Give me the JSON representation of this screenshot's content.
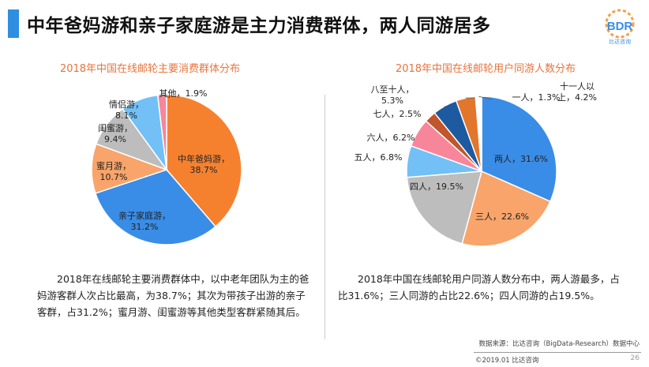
{
  "header": {
    "title": "中年爸妈游和亲子家庭游是主力消费群体，两人同游居多"
  },
  "logo": {
    "text": "BDR",
    "subtext": "比达咨询"
  },
  "chart_data": [
    {
      "type": "pie",
      "title": "2018年中国在线邮轮主要消费群体分布",
      "slices": [
        {
          "name": "中年爸妈游",
          "value": 38.7,
          "label": "中年爸妈游，",
          "pct": "38.7%",
          "color": "#f5812f"
        },
        {
          "name": "亲子家庭游",
          "value": 31.2,
          "label": "亲子家庭游，",
          "pct": "31.2%",
          "color": "#3a8de6"
        },
        {
          "name": "蜜月游",
          "value": 10.7,
          "label": "蜜月游，",
          "pct": "10.7%",
          "color": "#f8a46a"
        },
        {
          "name": "闺蜜游",
          "value": 9.4,
          "label": "闺蜜游，",
          "pct": "9.4%",
          "color": "#bdbdbd"
        },
        {
          "name": "情侣游",
          "value": 8.1,
          "label": "情侣游，",
          "pct": "8.1%",
          "color": "#72c0f5"
        },
        {
          "name": "其他",
          "value": 1.9,
          "label": "其他，1.9%",
          "pct": "",
          "color": "#f7869a"
        }
      ]
    },
    {
      "type": "pie",
      "title": "2018年中国在线邮轮用户同游人数分布",
      "slices": [
        {
          "name": "两人",
          "value": 31.6,
          "label": "两人，31.6%",
          "color": "#3a8de6"
        },
        {
          "name": "三人",
          "value": 22.6,
          "label": "三人，22.6%",
          "color": "#f8a46a"
        },
        {
          "name": "四人",
          "value": 19.5,
          "label": "四人，19.5%",
          "color": "#bdbdbd"
        },
        {
          "name": "五人",
          "value": 6.8,
          "label": "五人，6.8%",
          "color": "#72c0f5"
        },
        {
          "name": "六人",
          "value": 6.2,
          "label": "六人，6.2%",
          "color": "#f7869a"
        },
        {
          "name": "七人",
          "value": 2.5,
          "label": "七人，2.5%",
          "color": "#c0562a"
        },
        {
          "name": "八至十人",
          "value": 5.3,
          "label": "八至十人，",
          "pct": "5.3%",
          "color": "#1e5aa0"
        },
        {
          "name": "十一人以上",
          "value": 4.2,
          "label": "十一人以",
          "pct": "上，4.2%",
          "color": "#e2762c"
        },
        {
          "name": "一人",
          "value": 1.3,
          "label": "一人，1.3%",
          "color": "#ffffff"
        }
      ]
    }
  ],
  "descriptions": {
    "left": "2018年在线邮轮主要消费群体中，以中老年团队为主的爸妈游客群人次占比最高，为38.7%；其次为带孩子出游的亲子客群，占31.2%；蜜月游、闺蜜游等其他类型客群紧随其后。",
    "right": "2018年中国在线邮轮用户同游人数分布中，两人游最多，占比31.6%；三人同游的占比22.6%；四人同游的占19.5%。"
  },
  "footer": {
    "source": "数据来源：比达咨询（BigData-Research）数据中心",
    "copyright": "©2019.01  比达咨询",
    "page": "26"
  }
}
